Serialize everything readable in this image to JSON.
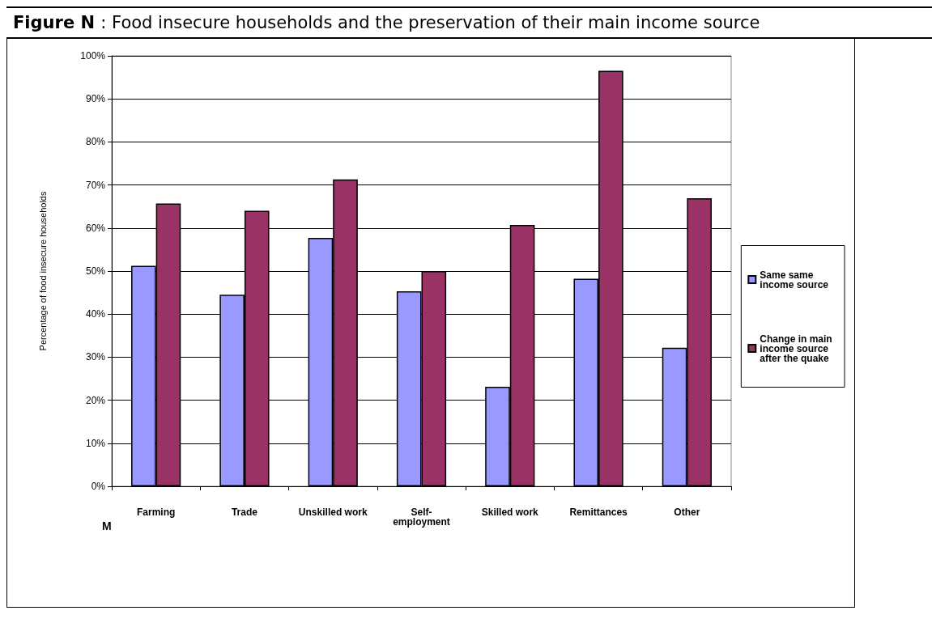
{
  "chart_data": {
    "type": "bar",
    "title": "Figure  N : Food insecure households and the preservation of their main income source",
    "ylabel": "Percentage of food insecure households",
    "categories": [
      "Farming",
      "Trade",
      "Unskilled work",
      "Self-employment",
      "Skilled work",
      "Remittances",
      "Other"
    ],
    "series": [
      {
        "name": "Same same income source",
        "color": "#9999ff",
        "values": [
          51.2,
          44.5,
          57.7,
          45.3,
          23.1,
          48.2,
          32.2
        ]
      },
      {
        "name": "Change in main income source after the quake",
        "color": "#993366",
        "values": [
          65.7,
          64.0,
          71.3,
          50.0,
          60.7,
          96.5,
          66.9
        ]
      }
    ],
    "ylim": [
      0,
      100
    ],
    "yticks": [
      {
        "value": 0,
        "label": "0%"
      },
      {
        "value": 10,
        "label": "10%"
      },
      {
        "value": 20,
        "label": "20%"
      },
      {
        "value": 30,
        "label": "30%"
      },
      {
        "value": 40,
        "label": "40%"
      },
      {
        "value": 50,
        "label": "50%"
      },
      {
        "value": 60,
        "label": "60%"
      },
      {
        "value": 70,
        "label": "70%"
      },
      {
        "value": 80,
        "label": "80%"
      },
      {
        "value": 90,
        "label": "90%"
      },
      {
        "value": 100,
        "label": "100%"
      }
    ],
    "grid": "y",
    "legend": "right",
    "annotations": [
      "M"
    ]
  }
}
